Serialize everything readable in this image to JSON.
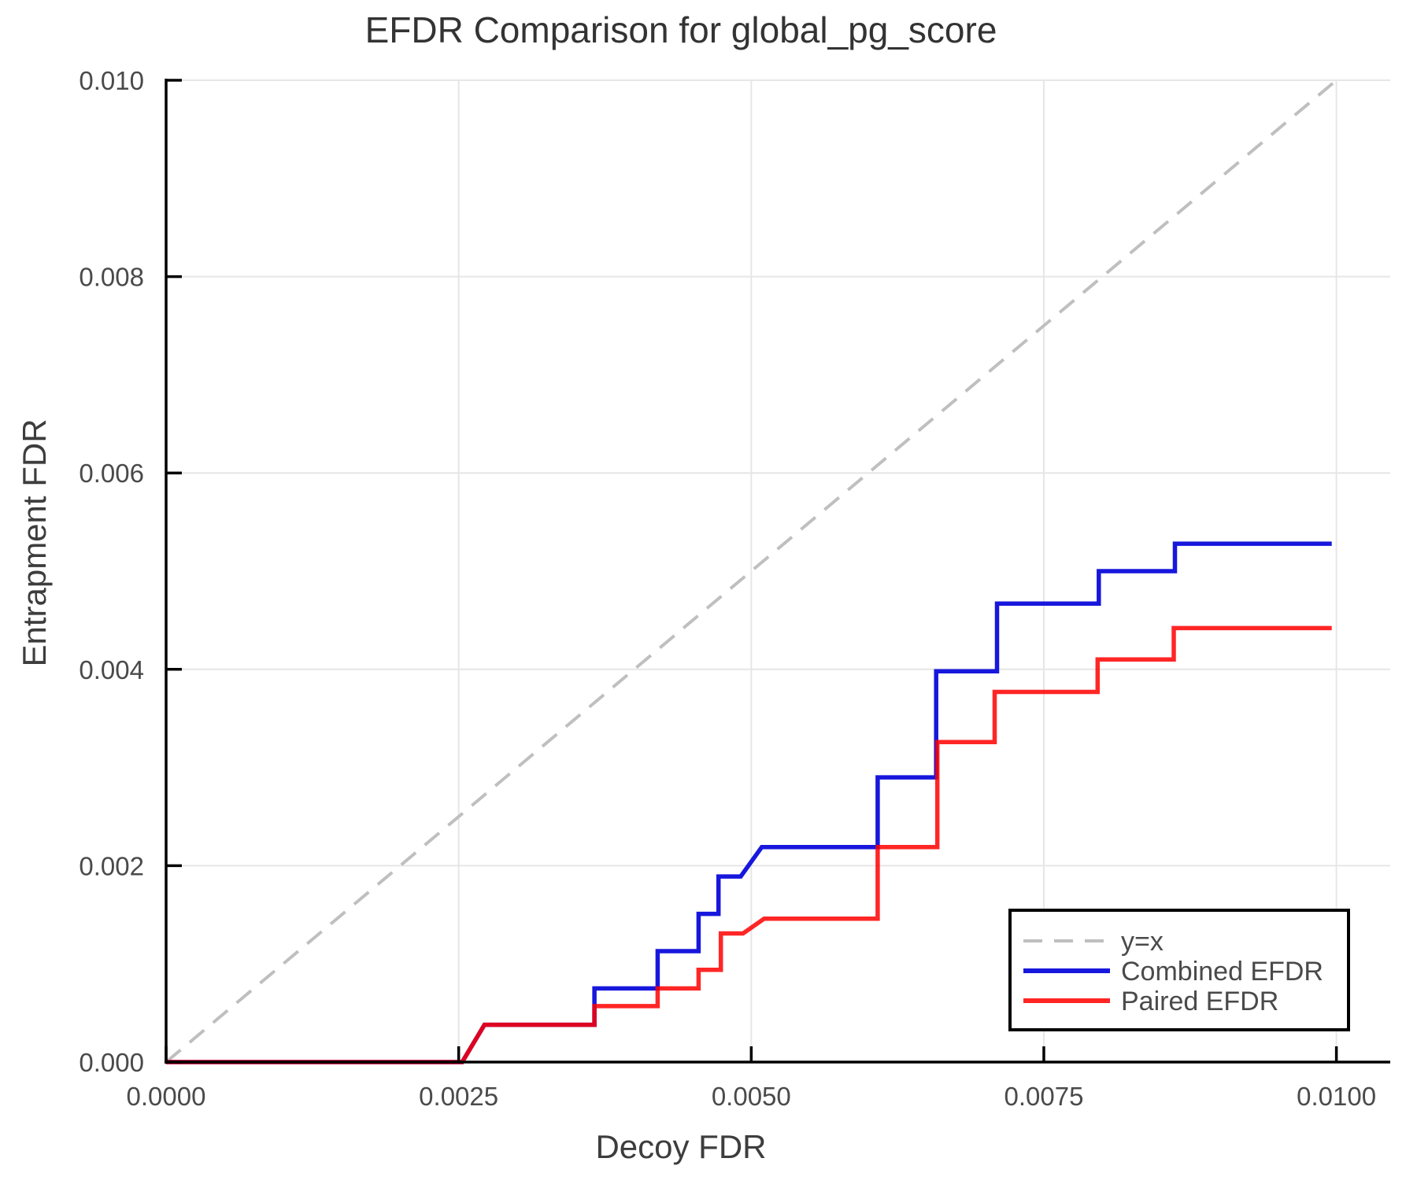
{
  "chart_data": {
    "type": "line",
    "title": "EFDR Comparison for global_pg_score",
    "xlabel": "Decoy FDR",
    "ylabel": "Entrapment FDR",
    "xlim": [
      0.0,
      0.01046
    ],
    "ylim": [
      0.0,
      0.01
    ],
    "grid": true,
    "legend_position": "inside-bottom-right",
    "colors": {
      "axis": "#000000",
      "grid": "#e6e6e6",
      "tick_label": "#4a4a4a",
      "title": "#333333",
      "background": "#ffffff",
      "legend_border": "#000000"
    },
    "xticks": {
      "values": [
        0.0,
        0.0025,
        0.005,
        0.0075,
        0.01
      ],
      "labels": [
        "0.0000",
        "0.0025",
        "0.0050",
        "0.0075",
        "0.0100"
      ]
    },
    "yticks": {
      "values": [
        0.0,
        0.002,
        0.004,
        0.006,
        0.008,
        0.01
      ],
      "labels": [
        "0.000",
        "0.002",
        "0.004",
        "0.006",
        "0.008",
        "0.010"
      ]
    },
    "series": [
      {
        "name": "y=x",
        "color": "#bfbfbf",
        "style": "dashed",
        "width": 4,
        "opacity": 1,
        "points": [
          [
            0.0,
            0.0
          ],
          [
            0.00997,
            0.00997
          ]
        ]
      },
      {
        "name": "Combined EFDR",
        "color": "#1717dd",
        "style": "solid",
        "width": 5.5,
        "opacity": 1,
        "points": [
          [
            0.0,
            0.0
          ],
          [
            0.00253,
            0.0
          ],
          [
            0.00272,
            0.00038
          ],
          [
            0.00366,
            0.00038
          ],
          [
            0.00366,
            0.00075
          ],
          [
            0.0042,
            0.00075
          ],
          [
            0.0042,
            0.00113
          ],
          [
            0.00455,
            0.00113
          ],
          [
            0.00455,
            0.00151
          ],
          [
            0.00472,
            0.00151
          ],
          [
            0.00472,
            0.00189
          ],
          [
            0.00491,
            0.00189
          ],
          [
            0.00509,
            0.00219
          ],
          [
            0.00608,
            0.00219
          ],
          [
            0.00608,
            0.0029
          ],
          [
            0.00658,
            0.0029
          ],
          [
            0.00658,
            0.00398
          ],
          [
            0.0071,
            0.00398
          ],
          [
            0.0071,
            0.00467
          ],
          [
            0.00797,
            0.00467
          ],
          [
            0.00797,
            0.005
          ],
          [
            0.00862,
            0.005
          ],
          [
            0.00862,
            0.00528
          ],
          [
            0.00996,
            0.00528
          ]
        ]
      },
      {
        "name": "Paired EFDR",
        "color": "#ff0000",
        "style": "solid",
        "width": 5.5,
        "opacity": 0.85,
        "points": [
          [
            0.0,
            0.0
          ],
          [
            0.00253,
            0.0
          ],
          [
            0.00272,
            0.00038
          ],
          [
            0.00366,
            0.00038
          ],
          [
            0.00366,
            0.00057
          ],
          [
            0.0042,
            0.00057
          ],
          [
            0.0042,
            0.00075
          ],
          [
            0.00455,
            0.00075
          ],
          [
            0.00455,
            0.00094
          ],
          [
            0.00474,
            0.00094
          ],
          [
            0.00474,
            0.00131
          ],
          [
            0.00493,
            0.00131
          ],
          [
            0.00511,
            0.00146
          ],
          [
            0.00608,
            0.00146
          ],
          [
            0.00608,
            0.00219
          ],
          [
            0.00659,
            0.00219
          ],
          [
            0.00659,
            0.00326
          ],
          [
            0.00708,
            0.00326
          ],
          [
            0.00708,
            0.00377
          ],
          [
            0.00796,
            0.00377
          ],
          [
            0.00796,
            0.0041
          ],
          [
            0.00861,
            0.0041
          ],
          [
            0.00861,
            0.00442
          ],
          [
            0.00996,
            0.00442
          ]
        ]
      }
    ]
  }
}
